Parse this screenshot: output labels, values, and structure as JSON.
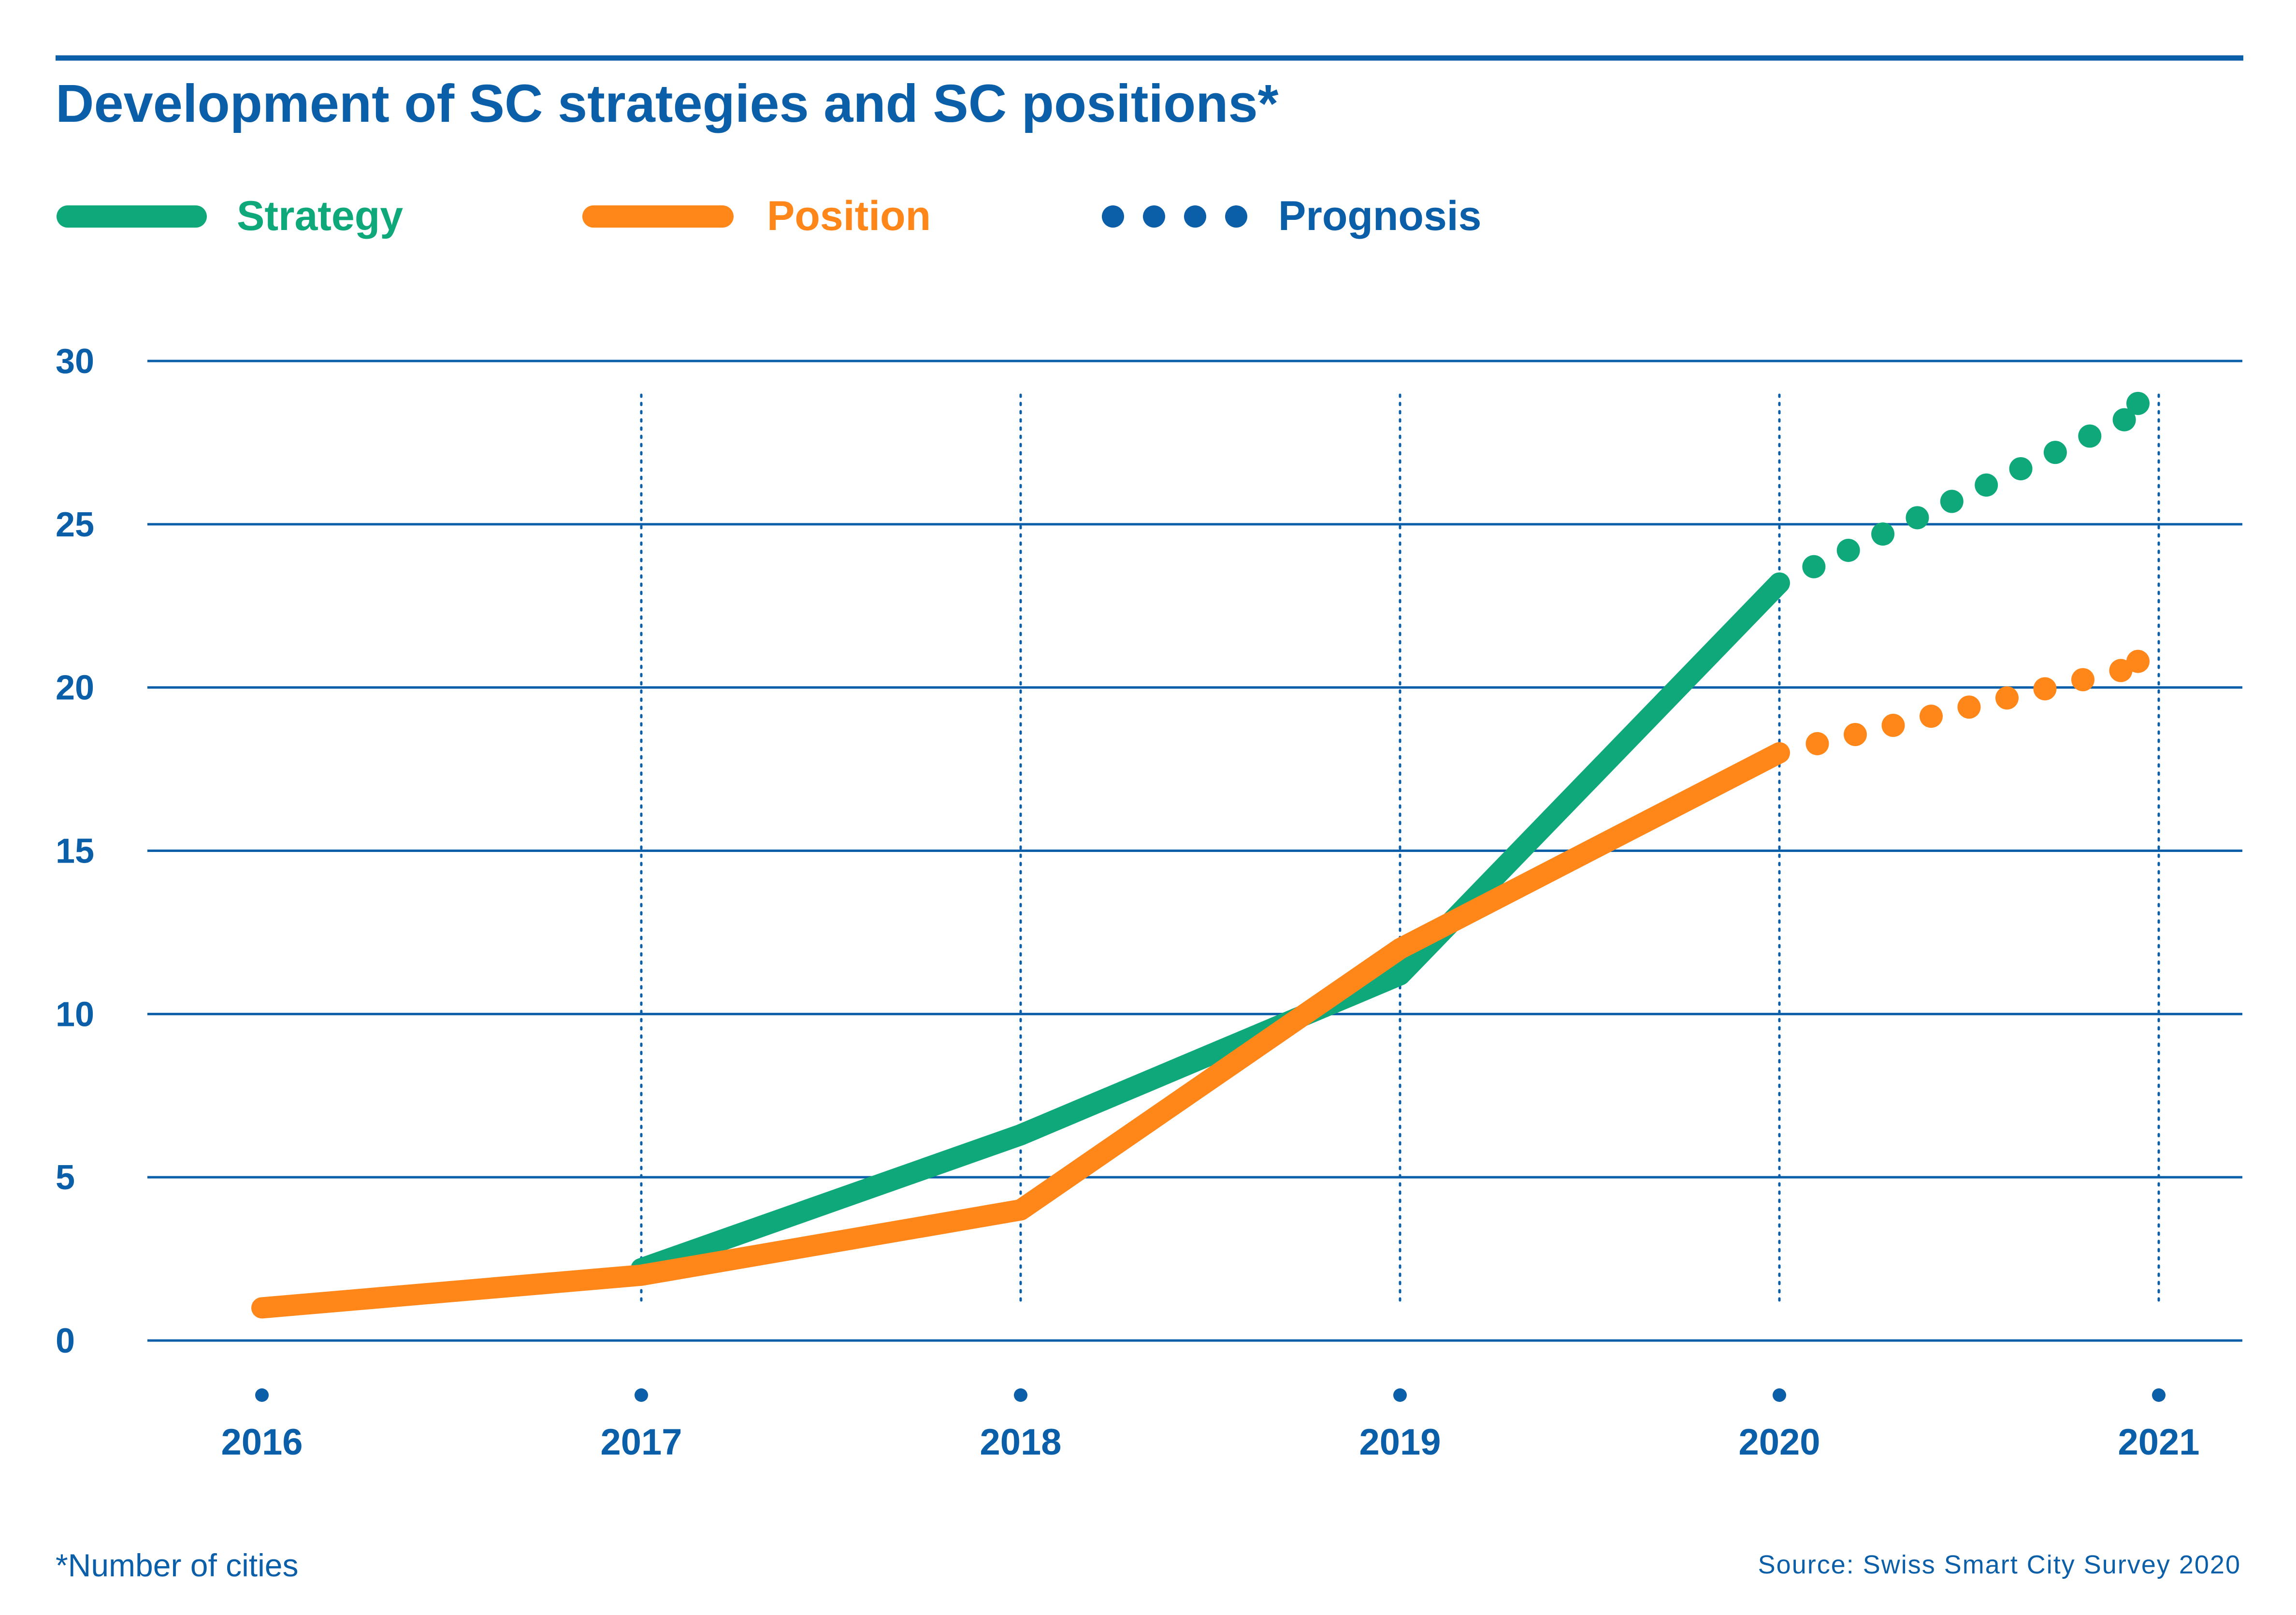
{
  "colors": {
    "text": "#0b5ea8",
    "grid": "#0b5ea8",
    "strategy": "#0fa87a",
    "position": "#ff8619",
    "prognosis": "#0b5ea8"
  },
  "chart_data": {
    "type": "line",
    "title": "Development of SC strategies and SC positions*",
    "xlabel": "",
    "ylabel": "",
    "categories": [
      "2016",
      "2017",
      "2018",
      "2019",
      "2020",
      "2021"
    ],
    "yticks": [
      "0",
      "5",
      "10",
      "15",
      "20",
      "25",
      "30"
    ],
    "ylim": [
      0,
      30
    ],
    "grid": true,
    "legend_position": "top-left",
    "legend": [
      {
        "label": "Strategy",
        "style": "solid",
        "color_key": "strategy"
      },
      {
        "label": "Position",
        "style": "solid",
        "color_key": "position"
      },
      {
        "label": "Prognosis",
        "style": "dotted",
        "color_key": "prognosis"
      }
    ],
    "series": [
      {
        "name": "Strategy",
        "color_key": "strategy",
        "actual": [
          {
            "x": "2017",
            "y": 2.2
          },
          {
            "x": "2018",
            "y": 6.3
          },
          {
            "x": "2019",
            "y": 11.2
          },
          {
            "x": "2020",
            "y": 23.2
          }
        ],
        "prognosis": [
          {
            "x": "2020",
            "y": 23.2
          },
          {
            "x": "2021",
            "y": 28.7
          }
        ]
      },
      {
        "name": "Position",
        "color_key": "position",
        "actual": [
          {
            "x": "2016",
            "y": 1.0
          },
          {
            "x": "2017",
            "y": 2.0
          },
          {
            "x": "2018",
            "y": 4.0
          },
          {
            "x": "2019",
            "y": 12.0
          },
          {
            "x": "2020",
            "y": 18.0
          }
        ],
        "prognosis": [
          {
            "x": "2020",
            "y": 18.0
          },
          {
            "x": "2021",
            "y": 20.8
          }
        ]
      }
    ],
    "footnote": "*Number of cities",
    "source": "Source: Swiss Smart City Survey 2020"
  }
}
